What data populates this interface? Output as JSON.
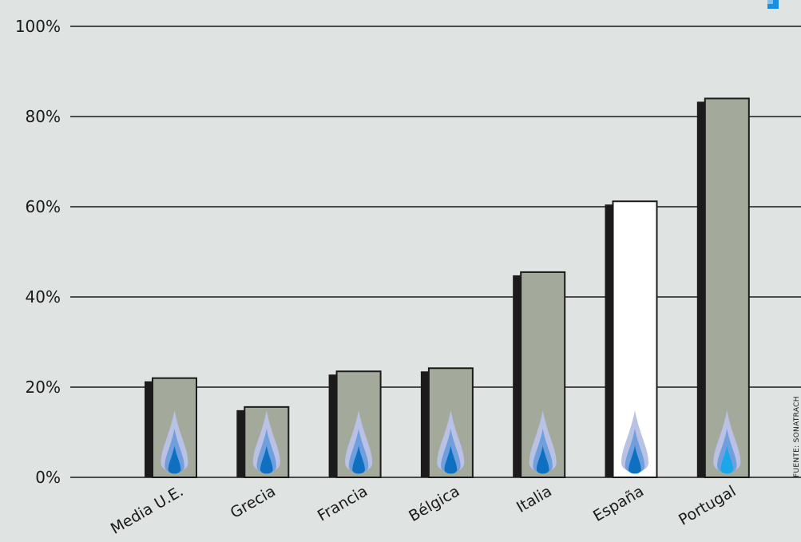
{
  "chart_data": {
    "type": "bar",
    "categories": [
      "Media U.E.",
      "Grecia",
      "Francia",
      "Bélgica",
      "Italia",
      "España",
      "Portugal"
    ],
    "values": [
      22,
      15.6,
      23.5,
      24.2,
      45.5,
      61.2,
      84
    ],
    "highlight_category": "España",
    "y_ticks": [
      "0%",
      "20%",
      "40%",
      "60%",
      "80%",
      "100%"
    ],
    "ylim": [
      0,
      100
    ],
    "grid": true,
    "source": "FUENTE: SONATRACH",
    "colors": {
      "background": "#dfe3e2",
      "bar": "#a3aa9b",
      "bar_highlight": "#ffffff",
      "bar_shadow": "#1c1a1b",
      "grid": "#1c1a1b",
      "flame_outer": "#b9c1e4",
      "flame_mid": "#6f9fdc",
      "flame_inner": "#0f6fc0",
      "flame_core_portugal": "#18a7e8",
      "logo": "#1a8fe0"
    }
  }
}
